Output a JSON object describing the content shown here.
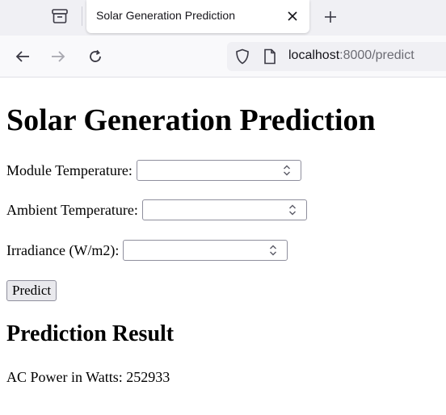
{
  "browser": {
    "tab": {
      "title": "Solar Generation Prediction"
    },
    "url": {
      "host": "localhost",
      "path": ":8000/predict"
    },
    "icons": {
      "tab_list": "tab-list-icon",
      "close": "close-icon",
      "new_tab": "plus-icon",
      "back": "arrow-left-icon",
      "forward": "arrow-right-icon",
      "reload": "reload-icon",
      "shield": "shield-icon",
      "page": "page-icon"
    }
  },
  "page": {
    "title": "Solar Generation Prediction",
    "form": {
      "fields": [
        {
          "label": "Module Temperature:",
          "value": ""
        },
        {
          "label": "Ambient Temperature:",
          "value": ""
        },
        {
          "label": "Irradiance (W/m2):",
          "value": ""
        }
      ],
      "submit_label": "Predict"
    },
    "result": {
      "heading": "Prediction Result",
      "label": "AC Power in Watts:",
      "value": "252933"
    }
  }
}
